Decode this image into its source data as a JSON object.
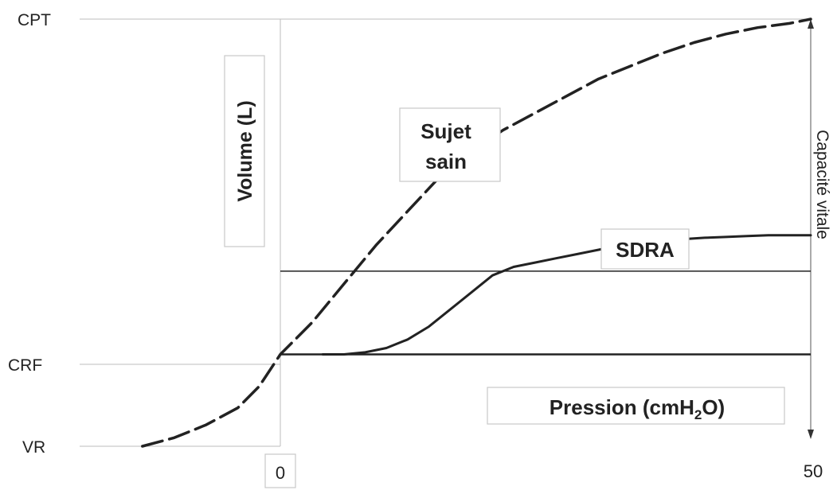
{
  "chart_data": {
    "type": "line",
    "title": "",
    "xlabel": "Pression (cmH2O)",
    "ylabel": "Volume (L)",
    "right_label": "Capacité vitale",
    "x_ticks": [
      "0",
      "50"
    ],
    "y_ticks": [
      "CPT",
      "CRF",
      "VR"
    ],
    "y_tick_values": [
      1.0,
      0.215,
      0.0
    ],
    "xlim": [
      -13,
      50
    ],
    "ylim": [
      0,
      1
    ],
    "grid": false,
    "series": [
      {
        "name": "Sujet sain",
        "style": "dashed",
        "x": [
          -13,
          -10,
          -7,
          -4,
          -2,
          0,
          3,
          6,
          9,
          12,
          15,
          18,
          21,
          24,
          27,
          30,
          33,
          36,
          39,
          42,
          45,
          48,
          50
        ],
        "y": [
          0.0,
          0.02,
          0.05,
          0.09,
          0.14,
          0.215,
          0.29,
          0.38,
          0.47,
          0.55,
          0.63,
          0.69,
          0.74,
          0.78,
          0.82,
          0.86,
          0.89,
          0.92,
          0.945,
          0.965,
          0.98,
          0.99,
          1.0
        ]
      },
      {
        "name": "SDRA",
        "style": "solid",
        "x": [
          4,
          6,
          8,
          10,
          12,
          14,
          16,
          18,
          20,
          22,
          24,
          26,
          28,
          30,
          32,
          34,
          36,
          38,
          40,
          42,
          44,
          46,
          48,
          50
        ],
        "y": [
          0.215,
          0.215,
          0.22,
          0.23,
          0.25,
          0.28,
          0.32,
          0.36,
          0.4,
          0.42,
          0.43,
          0.44,
          0.45,
          0.46,
          0.47,
          0.475,
          0.48,
          0.485,
          0.488,
          0.49,
          0.492,
          0.494,
          0.494,
          0.494
        ]
      }
    ],
    "reference_lines": [
      {
        "axis": "y",
        "value": 0.215
      },
      {
        "axis": "y",
        "value": 0.41
      }
    ]
  },
  "labels": {
    "volume": "Volume (L)",
    "pression_prefix": "Pression (cmH",
    "pression_sub": "2",
    "pression_suffix": "O)",
    "sujet_line1": "Sujet",
    "sujet_line2": "sain",
    "sdra": "SDRA",
    "capacite": "Capacité vitale"
  }
}
